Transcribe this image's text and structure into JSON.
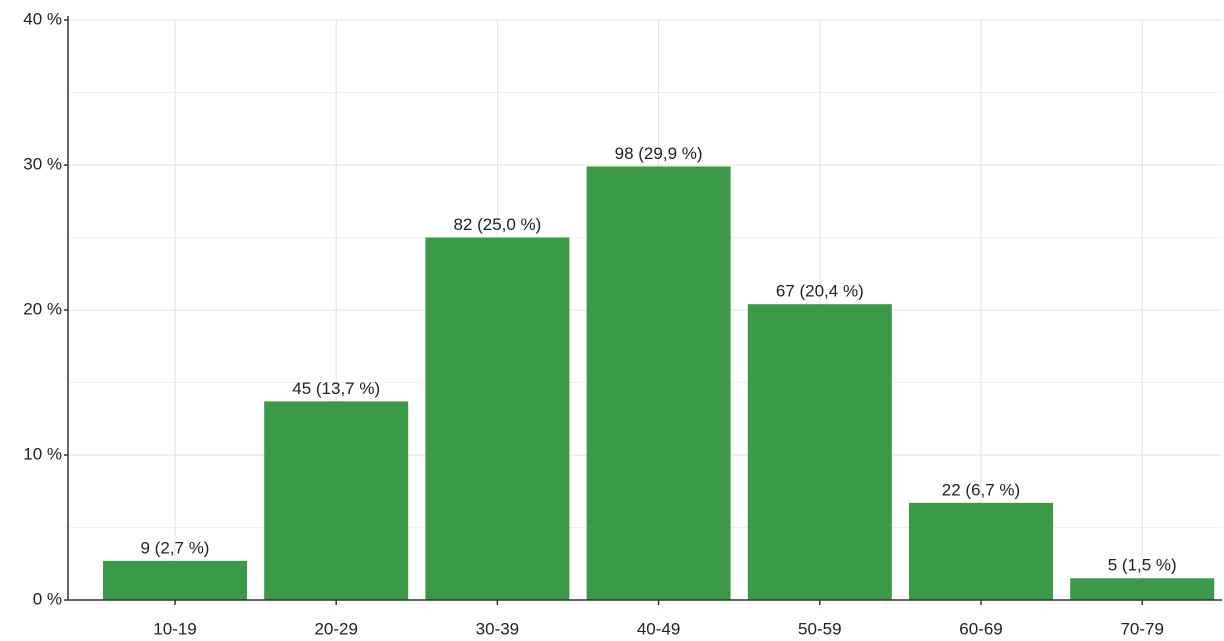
{
  "chart_data": {
    "type": "bar",
    "categories": [
      "10-19",
      "20-29",
      "30-39",
      "40-49",
      "50-59",
      "60-69",
      "70-79"
    ],
    "values": [
      2.7,
      13.7,
      25.0,
      29.9,
      20.4,
      6.7,
      1.5
    ],
    "value_labels": [
      "9 (2,7 %)",
      "45 (13,7 %)",
      "82 (25,0 %)",
      "98 (29,9 %)",
      "67 (20,4 %)",
      "22 (6,7 %)",
      "5 (1,5 %)"
    ],
    "color": "#3a9a48",
    "ylim": [
      0,
      40
    ],
    "yticks": [
      {
        "value": 0,
        "label": "0 %"
      },
      {
        "value": 10,
        "label": "10 %"
      },
      {
        "value": 20,
        "label": "20 %"
      },
      {
        "value": 30,
        "label": "30 %"
      },
      {
        "value": 40,
        "label": "40 %"
      }
    ],
    "minor_yticks": [
      5,
      15,
      25,
      35
    ],
    "grid": true
  }
}
